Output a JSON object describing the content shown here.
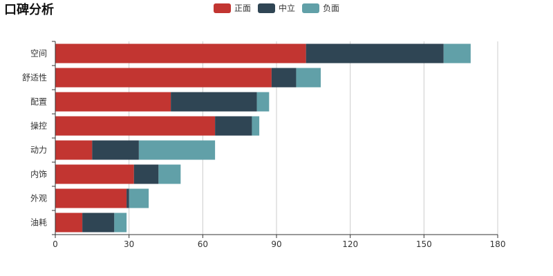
{
  "chart_data": {
    "type": "bar",
    "orientation": "horizontal",
    "stacked": true,
    "title": "口碑分析",
    "categories": [
      "空间",
      "舒适性",
      "配置",
      "操控",
      "动力",
      "内饰",
      "外观",
      "油耗"
    ],
    "series": [
      {
        "name": "正面",
        "color": "#c23531",
        "values": [
          102,
          88,
          47,
          65,
          15,
          32,
          29,
          11
        ]
      },
      {
        "name": "中立",
        "color": "#2f4554",
        "values": [
          56,
          10,
          35,
          15,
          19,
          10,
          1,
          13
        ]
      },
      {
        "name": "负面",
        "color": "#61a0a8",
        "values": [
          11,
          10,
          5,
          3,
          31,
          9,
          8,
          5
        ]
      }
    ],
    "xlim": [
      0,
      180
    ],
    "xticks": [
      0,
      30,
      60,
      90,
      120,
      150,
      180
    ],
    "xlabel": "",
    "ylabel": "",
    "grid": "vertical",
    "legend_position": "top-center"
  }
}
